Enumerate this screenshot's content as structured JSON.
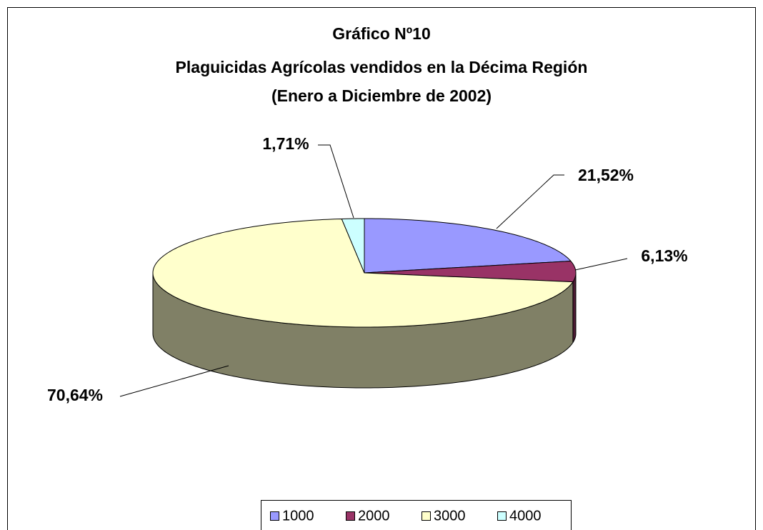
{
  "chart_data": {
    "type": "pie",
    "title": [
      "Gráfico Nº10",
      "Plaguicidas Agrícolas vendidos en la Décima Región",
      "(Enero a Diciembre de 2002)"
    ],
    "categories": [
      "1000",
      "2000",
      "3000",
      "4000"
    ],
    "values": [
      21.52,
      6.13,
      70.64,
      1.71
    ],
    "value_labels": [
      "21,52%",
      "6,13%",
      "70,64%",
      "1,71%"
    ],
    "colors": [
      "#9999ff",
      "#993366",
      "#ffffcc",
      "#ccffff"
    ],
    "legend": "bottom"
  }
}
